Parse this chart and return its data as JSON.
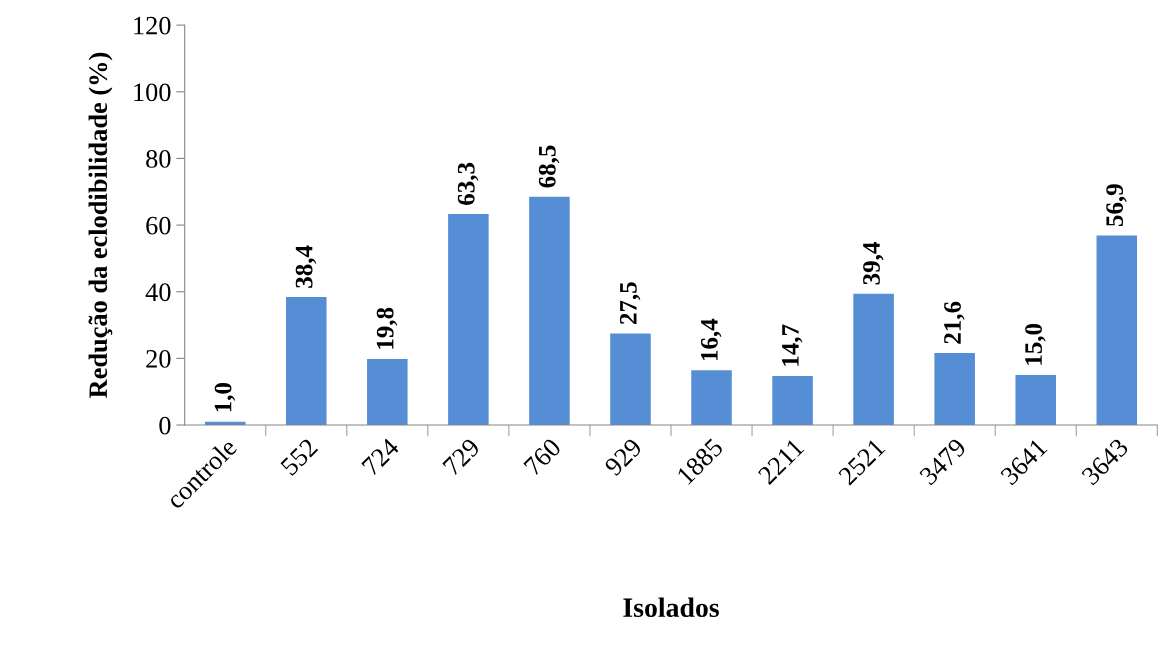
{
  "chart_data": {
    "type": "bar",
    "xlabel": "Isolados",
    "ylabel": "Redução da eclodibilidade (%)",
    "categories": [
      "controle",
      "552",
      "724",
      "729",
      "760",
      "929",
      "1885",
      "2211",
      "2521",
      "3479",
      "3641",
      "3643"
    ],
    "values": [
      1.0,
      38.4,
      19.8,
      63.3,
      68.5,
      27.5,
      16.4,
      14.7,
      39.4,
      21.6,
      15.0,
      56.9
    ],
    "value_labels": [
      "1,0",
      "38,4",
      "19,8",
      "63,3",
      "68,5",
      "27,5",
      "16,4",
      "14,7",
      "39,4",
      "21,6",
      "15,0",
      "56,9"
    ],
    "color": "#558ed5",
    "ylim": [
      0,
      120
    ],
    "yticks": [
      0,
      20,
      40,
      60,
      80,
      100,
      120
    ],
    "grid": false,
    "legend": false
  }
}
